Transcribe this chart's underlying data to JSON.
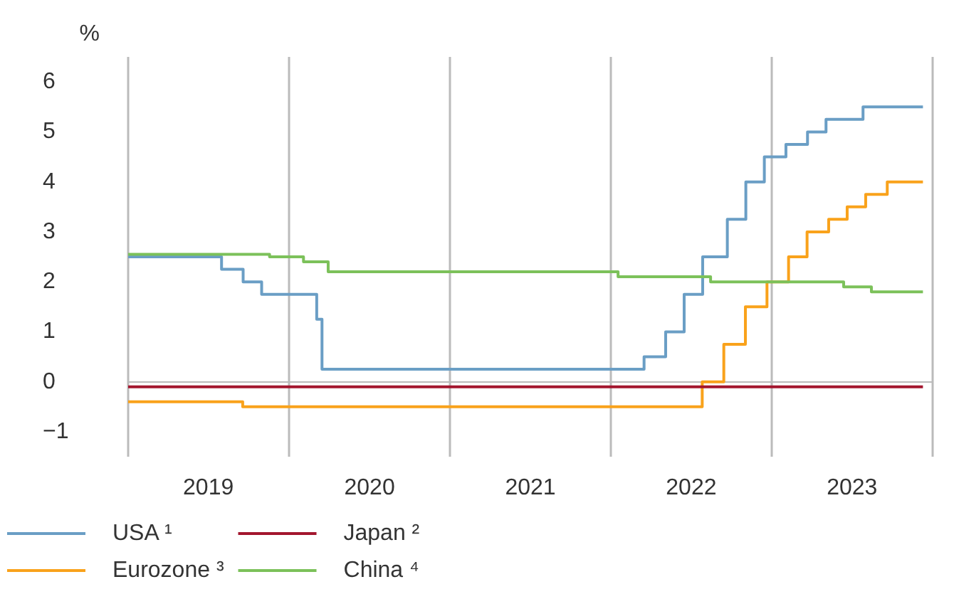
{
  "chart_data": {
    "type": "step",
    "ylabel": "%",
    "xlim": [
      "2019-01-01",
      "2024-01-01"
    ],
    "xticks": [
      {
        "value": "2019-01-01",
        "label": null
      },
      {
        "value": "2020-01-01",
        "label": null
      },
      {
        "value": "2021-01-01",
        "label": null
      },
      {
        "value": "2022-01-01",
        "label": null
      },
      {
        "value": "2023-01-01",
        "label": null
      },
      {
        "value": "2024-01-01",
        "label": null
      },
      {
        "value": "2019-07-02",
        "label": "2019"
      },
      {
        "value": "2020-07-02",
        "label": "2020"
      },
      {
        "value": "2021-07-02",
        "label": "2021"
      },
      {
        "value": "2022-07-02",
        "label": "2022"
      },
      {
        "value": "2023-07-02",
        "label": "2023"
      }
    ],
    "ylim": [
      -1.5,
      6.5
    ],
    "yticks": [
      {
        "value": -1,
        "label": "−1"
      },
      0,
      1,
      2,
      3,
      4,
      5,
      6
    ],
    "grid": "x",
    "legend": "bottom",
    "marker": "none",
    "line_style": "solid",
    "series": [
      {
        "name": "USA ¹",
        "color": "#6a9ec5",
        "x": [
          "2019-01-01",
          "2019-08-01",
          "2019-09-19",
          "2019-10-31",
          "2020-03-04",
          "2020-03-16",
          "2022-03-17",
          "2022-05-05",
          "2022-06-16",
          "2022-07-28",
          "2022-09-22",
          "2022-11-03",
          "2022-12-15",
          "2023-02-02",
          "2023-03-23",
          "2023-05-04",
          "2023-07-27",
          "2023-12-10"
        ],
        "values": [
          2.5,
          2.25,
          2.0,
          1.75,
          1.25,
          0.25,
          0.5,
          1.0,
          1.75,
          2.5,
          3.25,
          4.0,
          4.5,
          4.75,
          5.0,
          5.25,
          5.5,
          5.5
        ]
      },
      {
        "name": "Eurozone ³",
        "color": "#f9a21b",
        "x": [
          "2019-01-01",
          "2019-09-18",
          "2022-07-27",
          "2022-09-14",
          "2022-11-02",
          "2022-12-21",
          "2023-02-08",
          "2023-03-22",
          "2023-05-10",
          "2023-06-21",
          "2023-08-02",
          "2023-09-20",
          "2023-12-10"
        ],
        "values": [
          -0.4,
          -0.5,
          0,
          0.75,
          1.5,
          2.0,
          2.5,
          3.0,
          3.25,
          3.5,
          3.75,
          4.0,
          4.0
        ]
      },
      {
        "name": "Japan ²",
        "color": "#a3162e",
        "x": [
          "2019-01-01",
          "2023-12-10"
        ],
        "values": [
          -0.1,
          -0.1
        ]
      },
      {
        "name": "China ⁴",
        "color": "#7cc15a",
        "x": [
          "2019-01-01",
          "2019-11-18",
          "2020-02-03",
          "2020-03-30",
          "2022-01-17",
          "2022-08-15",
          "2023-06-13",
          "2023-08-15",
          "2023-12-10"
        ],
        "values": [
          2.55,
          2.5,
          2.4,
          2.2,
          2.1,
          2.0,
          1.9,
          1.8,
          1.8
        ]
      }
    ]
  }
}
